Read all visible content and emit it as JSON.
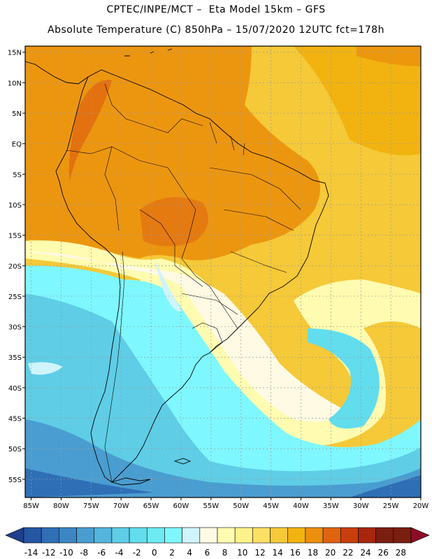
{
  "header": {
    "line1": "CPTEC/INPE/MCT –  Eta Model 15km – GFS",
    "line2": "Absolute Temperature (C) 850hPa – 15/07/2020 12UTC fct=178h"
  },
  "map": {
    "lat_labels": [
      "15N",
      "10N",
      "5N",
      "EQ",
      "5S",
      "10S",
      "15S",
      "20S",
      "25S",
      "30S",
      "35S",
      "40S",
      "45S",
      "50S",
      "55S"
    ],
    "lon_labels": [
      "85W",
      "80W",
      "75W",
      "70W",
      "65W",
      "60W",
      "55W",
      "50W",
      "45W",
      "40W",
      "35W",
      "30W",
      "25W",
      "20W"
    ],
    "lat_values": [
      15,
      10,
      5,
      0,
      -5,
      -10,
      -15,
      -20,
      -25,
      -30,
      -35,
      -40,
      -45,
      -50,
      -55
    ],
    "lon_values": [
      -85,
      -80,
      -75,
      -70,
      -65,
      -60,
      -55,
      -50,
      -45,
      -40,
      -35,
      -30,
      -25,
      -20
    ],
    "lon_range": [
      -86,
      -20
    ],
    "lat_range": [
      -58,
      16
    ]
  },
  "colorbar": {
    "labels": [
      "-14",
      "-12",
      "-10",
      "-8",
      "-6",
      "-4",
      "-2",
      "0",
      "2",
      "4",
      "6",
      "8",
      "10",
      "12",
      "14",
      "16",
      "18",
      "20",
      "22",
      "24",
      "26",
      "28"
    ],
    "colors": [
      "#1f3f8c",
      "#2456a3",
      "#2f6fb6",
      "#3c86c4",
      "#4a9dd0",
      "#55b5dc",
      "#5fcde6",
      "#62dded",
      "#6eeaf2",
      "#7ff7ff",
      "#d0f4fb",
      "#fefae4",
      "#fffbb0",
      "#fef28a",
      "#fce064",
      "#f5c938",
      "#f2b311",
      "#eb900c",
      "#e06410",
      "#c93e0d",
      "#a8260c",
      "#7a1e10",
      "#8c0d28"
    ]
  }
}
